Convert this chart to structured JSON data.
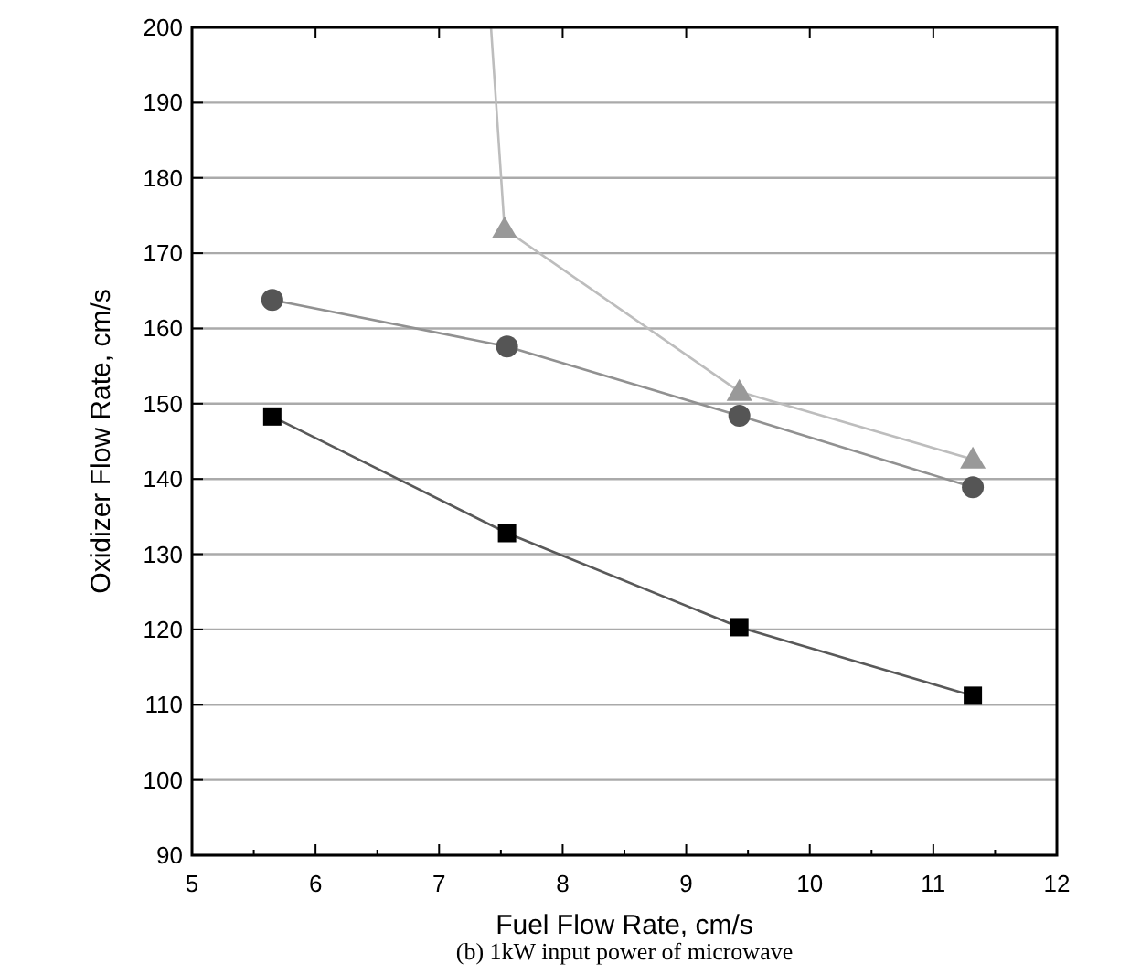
{
  "chart_data": {
    "type": "line",
    "xlabel": "Fuel Flow Rate, cm/s",
    "ylabel": "Oxidizer Flow Rate, cm/s",
    "annotations": [
      "(b) 1kW input power of microwave"
    ],
    "xlim": [
      5,
      12
    ],
    "xticks": [
      5,
      6,
      7,
      8,
      9,
      10,
      11,
      12
    ],
    "ylim": [
      90,
      200
    ],
    "yticks": [
      90,
      100,
      110,
      120,
      130,
      140,
      150,
      160,
      170,
      180,
      190,
      200
    ],
    "grid": "y",
    "series": [
      {
        "color": "#000000",
        "marker": "square",
        "x": [
          5.65,
          7.55,
          9.43,
          11.32
        ],
        "values": [
          148.3,
          132.8,
          120.3,
          111.2
        ]
      },
      {
        "color": "#555555",
        "marker": "circle",
        "x": [
          5.65,
          7.55,
          9.43,
          11.32
        ],
        "values": [
          163.8,
          157.6,
          148.4,
          138.9
        ]
      },
      {
        "color": "#999999",
        "marker": "triangle",
        "x": [
          7.42,
          7.53,
          9.43,
          11.32
        ],
        "values": [
          200,
          173.2,
          151.6,
          142.6
        ]
      }
    ]
  }
}
